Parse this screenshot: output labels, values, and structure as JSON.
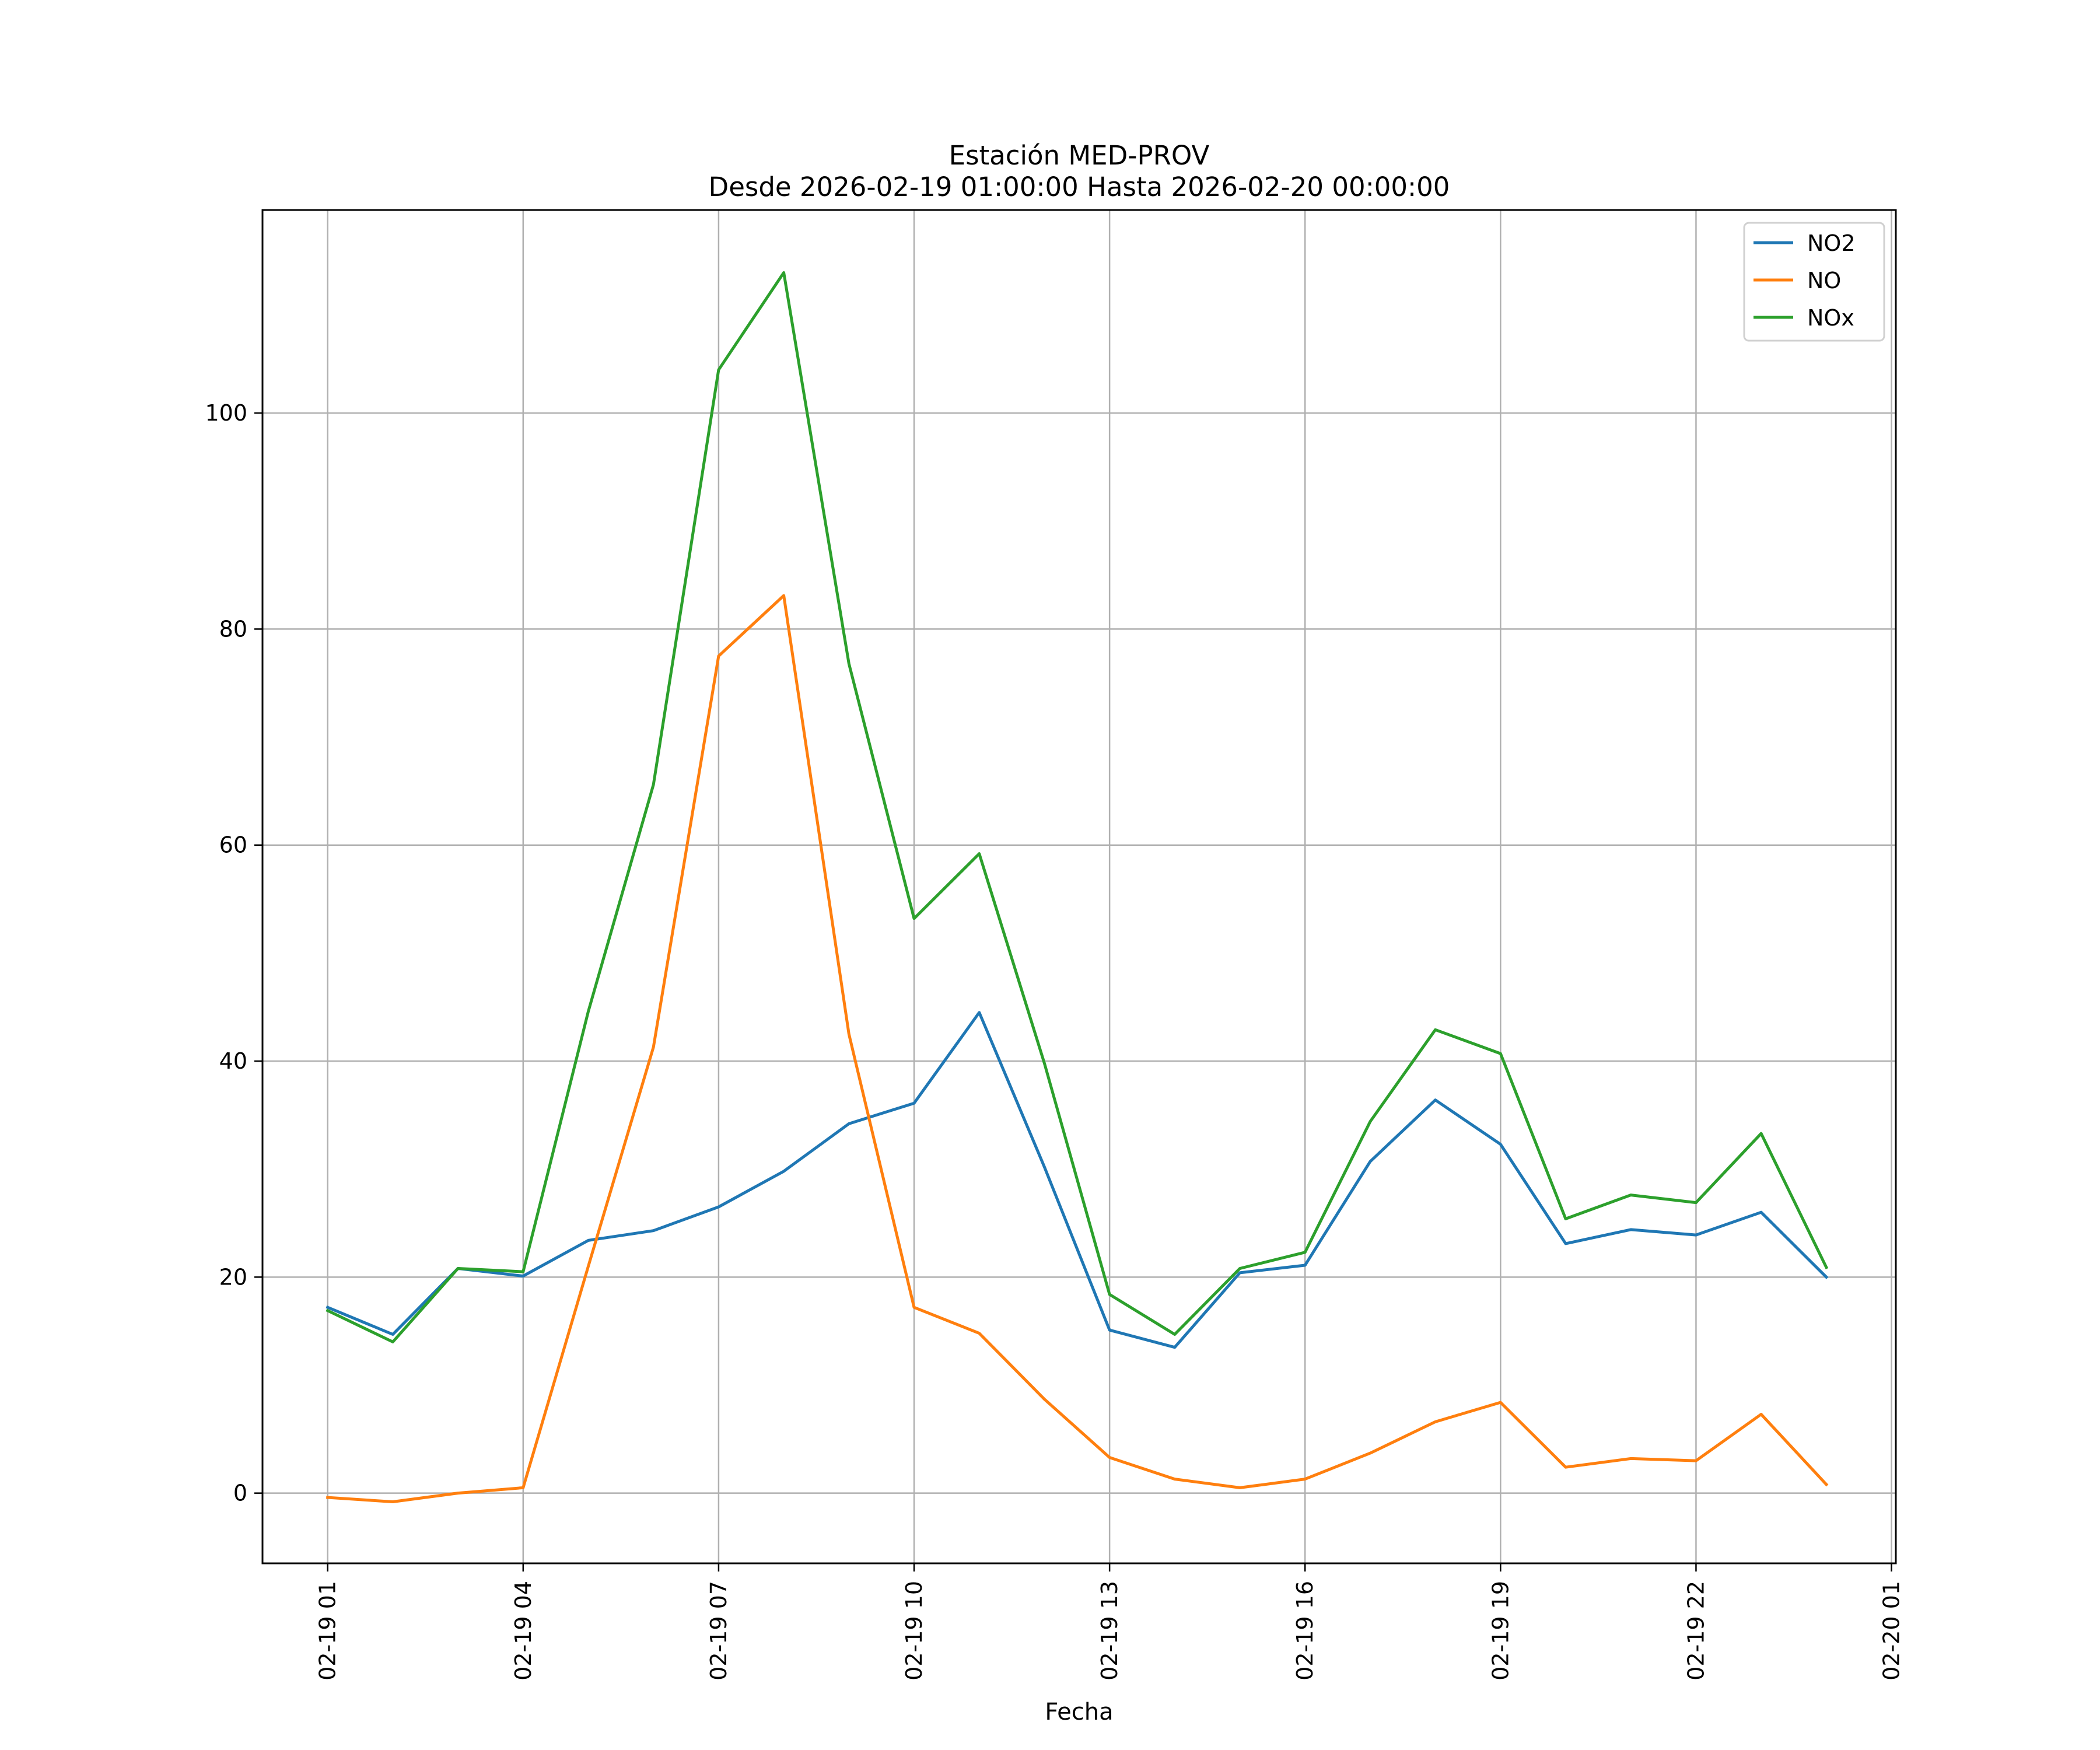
{
  "chart_data": {
    "type": "line",
    "title": "Estación MED-PROV",
    "subtitle": "Desde 2026-02-19 01:00:00 Hasta 2026-02-20 00:00:00",
    "xlabel": "Fecha",
    "ylabel": "",
    "x": [
      "2026-02-19 01:00",
      "2026-02-19 02:00",
      "2026-02-19 03:00",
      "2026-02-19 04:00",
      "2026-02-19 05:00",
      "2026-02-19 06:00",
      "2026-02-19 07:00",
      "2026-02-19 08:00",
      "2026-02-19 09:00",
      "2026-02-19 10:00",
      "2026-02-19 11:00",
      "2026-02-19 12:00",
      "2026-02-19 13:00",
      "2026-02-19 14:00",
      "2026-02-19 15:00",
      "2026-02-19 16:00",
      "2026-02-19 17:00",
      "2026-02-19 18:00",
      "2026-02-19 19:00",
      "2026-02-19 20:00",
      "2026-02-19 21:00",
      "2026-02-19 22:00",
      "2026-02-19 23:00",
      "2026-02-20 00:00"
    ],
    "xlim": [
      "2026-02-19 00:00",
      "2026-02-20 01:04"
    ],
    "xticks": [
      "2026-02-19 01:00",
      "2026-02-19 04:00",
      "2026-02-19 07:00",
      "2026-02-19 10:00",
      "2026-02-19 13:00",
      "2026-02-19 16:00",
      "2026-02-19 19:00",
      "2026-02-19 22:00",
      "2026-02-20 01:00"
    ],
    "xtick_labels": [
      "02-19 01",
      "02-19 04",
      "02-19 07",
      "02-19 10",
      "02-19 13",
      "02-19 16",
      "02-19 19",
      "02-19 22",
      "02-20 01"
    ],
    "ylim": [
      -6.5,
      118.8
    ],
    "yticks": [
      0,
      20,
      40,
      60,
      80,
      100
    ],
    "ytick_labels": [
      "0",
      "20",
      "40",
      "60",
      "80",
      "100"
    ],
    "grid": true,
    "legend_position": "top-right",
    "series": [
      {
        "name": "NO2",
        "color": "#1f77b4",
        "values": [
          17.2,
          14.7,
          20.8,
          20.1,
          23.4,
          24.3,
          26.5,
          29.8,
          34.2,
          36.1,
          44.5,
          30.2,
          15.1,
          13.5,
          20.4,
          21.1,
          30.7,
          36.4,
          32.3,
          23.1,
          24.4,
          23.9,
          26.0,
          20.0
        ]
      },
      {
        "name": "NO",
        "color": "#ff7f0e",
        "values": [
          -0.4,
          -0.8,
          0.0,
          0.5,
          21.0,
          41.3,
          77.5,
          83.1,
          42.5,
          17.2,
          14.8,
          8.7,
          3.3,
          1.3,
          0.5,
          1.3,
          3.7,
          6.6,
          8.4,
          2.4,
          3.2,
          3.0,
          7.3,
          0.8
        ]
      },
      {
        "name": "NOx",
        "color": "#2ca02c",
        "values": [
          16.9,
          14.0,
          20.8,
          20.5,
          44.6,
          65.6,
          104.0,
          113.0,
          76.8,
          53.2,
          59.2,
          39.8,
          18.4,
          14.7,
          20.8,
          22.3,
          34.4,
          42.9,
          40.7,
          25.4,
          27.6,
          26.9,
          33.3,
          20.9
        ]
      }
    ]
  }
}
